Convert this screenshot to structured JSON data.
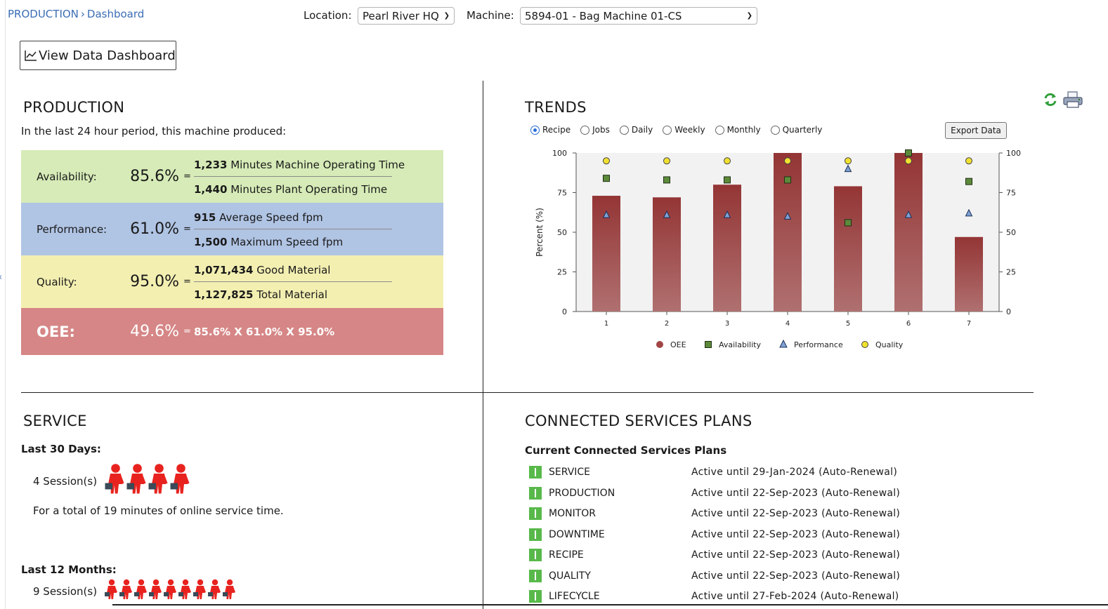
{
  "breadcrumb": {
    "root": "PRODUCTION",
    "current": "Dashboard"
  },
  "filters": {
    "location_label": "Location:",
    "location_value": "Pearl River HQ",
    "machine_label": "Machine:",
    "machine_value": "5894-01 - Bag Machine 01-CS"
  },
  "view_dashboard_button": "View Data Dashboard",
  "production": {
    "title": "PRODUCTION",
    "intro": "In the last 24 hour period, this machine produced:",
    "availability": {
      "label": "Availability:",
      "value": "85.6%",
      "eq": "=",
      "num_bold": "1,233",
      "num_text": "Minutes Machine Operating Time",
      "den_bold": "1,440",
      "den_text": "Minutes Plant Operating Time"
    },
    "performance": {
      "label": "Performance:",
      "value": "61.0%",
      "eq": "=",
      "num_bold": "915",
      "num_text": "Average Speed fpm",
      "den_bold": "1,500",
      "den_text": "Maximum Speed fpm"
    },
    "quality": {
      "label": "Quality:",
      "value": "95.0%",
      "eq": "=",
      "num_bold": "1,071,434",
      "num_text": "Good Material",
      "den_bold": "1,127,825",
      "den_text": "Total Material"
    },
    "oee": {
      "label": "OEE:",
      "value": "49.6%",
      "eq": "=",
      "calc": "85.6% X 61.0% X 95.0%"
    }
  },
  "trends": {
    "title": "TRENDS",
    "radios": [
      {
        "label": "Recipe",
        "selected": true
      },
      {
        "label": "Jobs",
        "selected": false
      },
      {
        "label": "Daily",
        "selected": false
      },
      {
        "label": "Weekly",
        "selected": false
      },
      {
        "label": "Monthly",
        "selected": false
      },
      {
        "label": "Quarterly",
        "selected": false
      }
    ],
    "export_label": "Export Data"
  },
  "chart_data": {
    "type": "bar",
    "ylabel": "Percent (%)",
    "ylim": [
      0,
      100
    ],
    "yticks": [
      0,
      25,
      50,
      75,
      100
    ],
    "categories": [
      "1",
      "2",
      "3",
      "4",
      "5",
      "6",
      "7"
    ],
    "grid": false,
    "legend_position": "bottom",
    "series": [
      {
        "name": "OEE",
        "type": "bar",
        "color": "#9b3a3a",
        "values": [
          73,
          72,
          80,
          100,
          79,
          100,
          47
        ]
      },
      {
        "name": "Availability",
        "type": "scatter",
        "marker": "square",
        "color": "#5c8a3a",
        "values": [
          84,
          83,
          83,
          83,
          56,
          100,
          82
        ]
      },
      {
        "name": "Performance",
        "type": "scatter",
        "marker": "triangle",
        "color": "#2f5fa8",
        "values": [
          61,
          61,
          61,
          60,
          90,
          61,
          62
        ]
      },
      {
        "name": "Quality",
        "type": "scatter",
        "marker": "circle",
        "color": "#f0e030",
        "values": [
          95,
          95,
          95,
          95,
          95,
          95,
          95
        ]
      }
    ]
  },
  "service": {
    "title": "SERVICE",
    "last30_label": "Last 30 Days:",
    "last30_sessions": "4 Session(s)",
    "last30_count": 4,
    "total_note": "For a total of 19 minutes of online service time.",
    "last12_label": "Last 12 Months:",
    "last12_sessions": "9 Session(s)",
    "last12_count": 9
  },
  "plans": {
    "title": "CONNECTED SERVICES PLANS",
    "subtitle": "Current Connected Services Plans",
    "items": [
      {
        "name": "SERVICE",
        "status": "Active until 29-Jan-2024 (Auto-Renewal)"
      },
      {
        "name": "PRODUCTION",
        "status": "Active until 22-Sep-2023 (Auto-Renewal)"
      },
      {
        "name": "MONITOR",
        "status": "Active until 22-Sep-2023 (Auto-Renewal)"
      },
      {
        "name": "DOWNTIME",
        "status": "Active until 22-Sep-2023 (Auto-Renewal)"
      },
      {
        "name": "RECIPE",
        "status": "Active until 22-Sep-2023 (Auto-Renewal)"
      },
      {
        "name": "QUALITY",
        "status": "Active until 22-Sep-2023 (Auto-Renewal)"
      },
      {
        "name": "LIFECYCLE",
        "status": "Active until 27-Feb-2024 (Auto-Renewal)"
      }
    ]
  },
  "icons": {
    "refresh": "refresh-icon",
    "print": "printer-icon",
    "chart": "line-chart-icon",
    "person": "service-technician-icon"
  }
}
